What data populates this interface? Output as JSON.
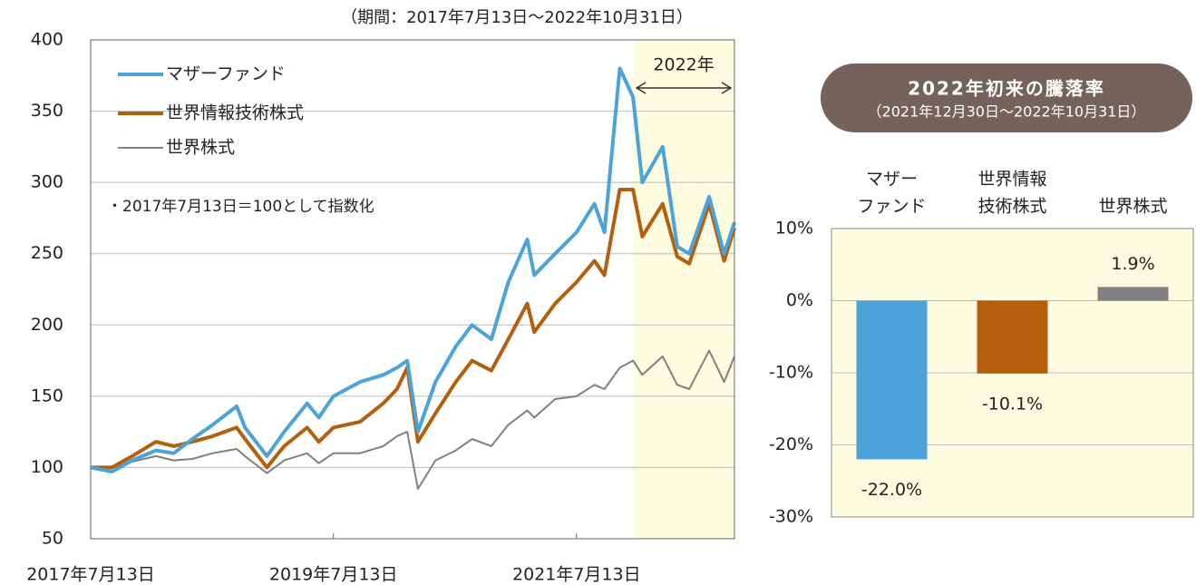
{
  "chart_data": [
    {
      "type": "line",
      "title": "（期間：2017年7月13日～2022年10月31日）",
      "annotation": "・2017年7月13日＝100として指数化",
      "highlight": {
        "label": "2022年",
        "start": "2021-12-30",
        "color": "#fdfbe0"
      },
      "x": [
        "2017-07-13",
        "2017-09-15",
        "2017-11-15",
        "2018-01-25",
        "2018-03-20",
        "2018-05-15",
        "2018-07-15",
        "2018-09-25",
        "2018-10-20",
        "2018-12-25",
        "2019-02-15",
        "2019-04-25",
        "2019-05-30",
        "2019-07-13",
        "2019-10-01",
        "2019-12-10",
        "2020-01-20",
        "2020-02-20",
        "2020-03-23",
        "2020-05-15",
        "2020-07-15",
        "2020-09-02",
        "2020-10-30",
        "2020-12-20",
        "2021-02-15",
        "2021-03-08",
        "2021-05-10",
        "2021-07-13",
        "2021-09-05",
        "2021-10-05",
        "2021-11-20",
        "2021-12-30",
        "2022-01-27",
        "2022-03-29",
        "2022-05-12",
        "2022-06-17",
        "2022-08-16",
        "2022-09-30",
        "2022-10-31"
      ],
      "series": [
        {
          "name": "マザーファンド",
          "color": "#4ba3d9",
          "width": 4,
          "values": [
            100,
            97,
            105,
            112,
            110,
            120,
            130,
            143,
            128,
            108,
            125,
            145,
            135,
            150,
            160,
            165,
            170,
            175,
            125,
            160,
            185,
            200,
            190,
            230,
            260,
            235,
            250,
            265,
            285,
            265,
            380,
            360,
            300,
            325,
            255,
            250,
            290,
            250,
            272
          ]
        },
        {
          "name": "世界情報技術株式",
          "color": "#b45f0e",
          "width": 4,
          "values": [
            100,
            100,
            108,
            118,
            115,
            118,
            122,
            128,
            120,
            100,
            115,
            128,
            118,
            128,
            132,
            145,
            155,
            170,
            118,
            138,
            160,
            175,
            168,
            190,
            215,
            195,
            215,
            230,
            245,
            235,
            295,
            295,
            262,
            285,
            248,
            243,
            285,
            245,
            268
          ]
        },
        {
          "name": "世界株式",
          "color": "#808080",
          "width": 2,
          "values": [
            100,
            100,
            104,
            108,
            105,
            106,
            110,
            113,
            108,
            96,
            105,
            110,
            103,
            110,
            110,
            115,
            122,
            125,
            85,
            105,
            112,
            120,
            115,
            130,
            140,
            135,
            148,
            150,
            158,
            155,
            170,
            175,
            165,
            178,
            158,
            155,
            182,
            160,
            178
          ]
        }
      ],
      "xlim": [
        "2017-07-13",
        "2022-10-31"
      ],
      "xticks": [
        {
          "value": "2017-07-13",
          "label": "2017年7月13日"
        },
        {
          "value": "2019-07-13",
          "label": "2019年7月13日"
        },
        {
          "value": "2021-07-13",
          "label": "2021年7月13日"
        }
      ],
      "ylim": [
        50,
        400
      ],
      "yticks": [
        50,
        100,
        150,
        200,
        250,
        300,
        350,
        400
      ],
      "grid": true
    },
    {
      "type": "bar",
      "title": "2022年初来の騰落率",
      "subtitle": "（2021年12月30日～2022年10月31日）",
      "categories": [
        [
          "マザー",
          "ファンド"
        ],
        [
          "世界情報",
          "技術株式"
        ],
        [
          "世界株式"
        ]
      ],
      "values": [
        -22.0,
        -10.1,
        1.9
      ],
      "value_labels": [
        "-22.0%",
        "-10.1%",
        "1.9%"
      ],
      "colors": [
        "#4ba3d9",
        "#b45f0e",
        "#808080"
      ],
      "ylim": [
        -30,
        10
      ],
      "yticks": [
        {
          "value": -30,
          "label": "-30%"
        },
        {
          "value": -20,
          "label": "-20%"
        },
        {
          "value": -10,
          "label": "-10%"
        },
        {
          "value": 0,
          "label": "0%"
        },
        {
          "value": 10,
          "label": "10%"
        }
      ],
      "grid": true,
      "background": "#fdfbe0"
    }
  ]
}
